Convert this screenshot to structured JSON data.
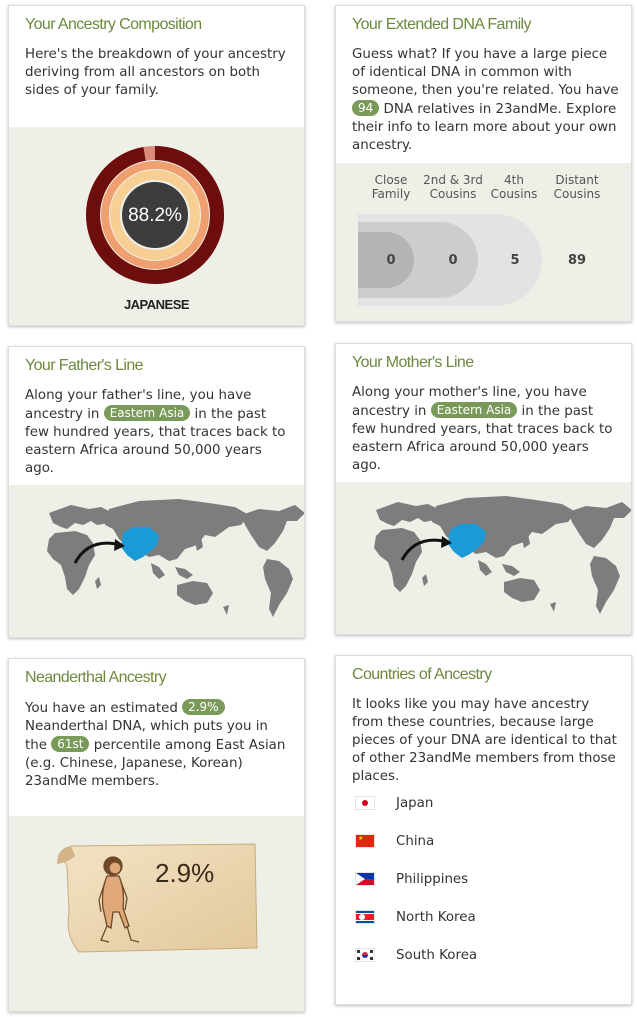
{
  "ancestry": {
    "title": "Your Ancestry Composition",
    "text": "Here's the breakdown of your ancestry deriving from all ancestors on both sides of your family.",
    "percent_label": "88.2%",
    "percent_value": 88.2,
    "label": "JAPANESE"
  },
  "dna_family": {
    "title": "Your Extended DNA Family",
    "text_1": "Guess what? If you have a large piece of identical DNA in common with someone, then you're related. You have",
    "relatives_count": "94",
    "text_2": "DNA relatives in 23andMe. Explore their info to learn more about your own ancestry.",
    "columns": [
      {
        "label_1": "Close",
        "label_2": "Family",
        "value": "0"
      },
      {
        "label_1": "2nd & 3rd",
        "label_2": "Cousins",
        "value": "0"
      },
      {
        "label_1": "4th",
        "label_2": "Cousins",
        "value": "5"
      },
      {
        "label_1": "Distant",
        "label_2": "Cousins",
        "value": "89"
      }
    ]
  },
  "father": {
    "title": "Your Father's Line",
    "text_1": "Along your father's line, you have ancestry in",
    "region": "Eastern Asia",
    "text_2": "in the past few hundred years, that traces back to eastern Africa around 50,000 years ago."
  },
  "mother": {
    "title": "Your Mother's Line",
    "text_1": "Along your mother's line, you have ancestry in",
    "region": "Eastern Asia",
    "text_2": "in the past few hundred years, that traces back to eastern Africa around 50,000 years ago."
  },
  "neanderthal": {
    "title": "Neanderthal Ancestry",
    "text_1": "You have an estimated",
    "percent": "2.9%",
    "text_2": "Neanderthal DNA, which puts you in the",
    "percentile": "61st",
    "text_3": "percentile among East Asian (e.g. Chinese, Japanese, Korean) 23andMe members.",
    "image_label": "2.9%"
  },
  "countries": {
    "title": "Countries of Ancestry",
    "text": "It looks like you may have ancestry from these countries, because large pieces of your DNA are identical to that of other 23andMe members from those places.",
    "items": [
      {
        "name": "Japan",
        "flag": "japan-flag-icon"
      },
      {
        "name": "China",
        "flag": "china-flag-icon"
      },
      {
        "name": "Philippines",
        "flag": "philippines-flag-icon"
      },
      {
        "name": "North Korea",
        "flag": "north-korea-flag-icon"
      },
      {
        "name": "South Korea",
        "flag": "south-korea-flag-icon"
      }
    ]
  },
  "colors": {
    "accent_green": "#6b8a3e",
    "pill_green": "#7a9a5a",
    "map_highlight": "#1a9ad6",
    "map_land": "#7d7d7d",
    "panel_bg": "#eef0e8"
  }
}
